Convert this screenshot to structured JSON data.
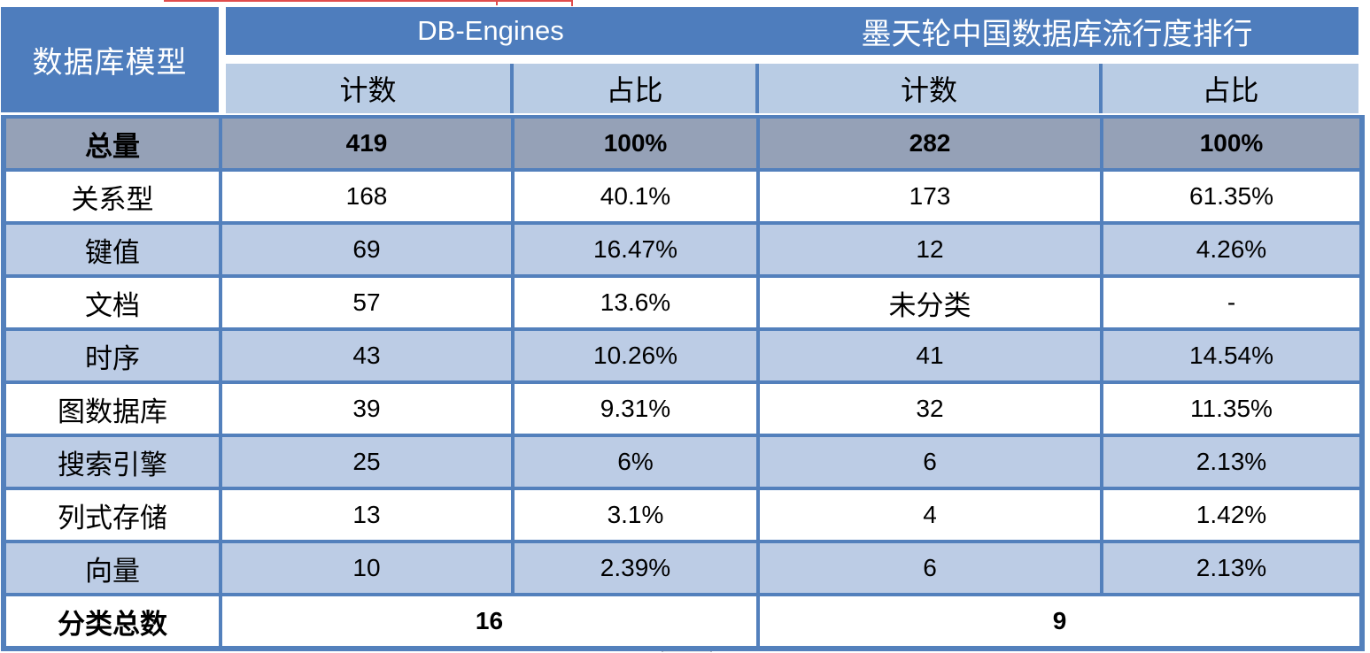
{
  "table": {
    "corner_header": "数据库模型",
    "groups": [
      {
        "label": "DB-Engines"
      },
      {
        "label": "墨天轮中国数据库流行度排行"
      }
    ],
    "subheaders": [
      "计数",
      "占比",
      "计数",
      "占比"
    ],
    "rows": [
      {
        "label": "总量",
        "cells": [
          "419",
          "100%",
          "282",
          "100%"
        ]
      },
      {
        "label": "关系型",
        "cells": [
          "168",
          "40.1%",
          "173",
          "61.35%"
        ]
      },
      {
        "label": "键值",
        "cells": [
          "69",
          "16.47%",
          "12",
          "4.26%"
        ]
      },
      {
        "label": "文档",
        "cells": [
          "57",
          "13.6%",
          "未分类",
          "-"
        ]
      },
      {
        "label": "时序",
        "cells": [
          "43",
          "10.26%",
          "41",
          "14.54%"
        ]
      },
      {
        "label": "图数据库",
        "cells": [
          "39",
          "9.31%",
          "32",
          "11.35%"
        ]
      },
      {
        "label": "搜索引擎",
        "cells": [
          "25",
          "6%",
          "6",
          "2.13%"
        ]
      },
      {
        "label": "列式存储",
        "cells": [
          "13",
          "3.1%",
          "4",
          "1.42%"
        ]
      },
      {
        "label": "向量",
        "cells": [
          "10",
          "2.39%",
          "6",
          "2.13%"
        ]
      }
    ],
    "footer": {
      "label": "分类总数",
      "values": [
        "16",
        "9"
      ]
    }
  },
  "colors": {
    "header_blue": "#4E7DBD",
    "light_blue": "#BCCCE5",
    "total_row_gray": "#95A1B7",
    "grid_blue": "#5380BC",
    "text": "#000000",
    "header_text": "#FFFFFF",
    "artifact_red": "#E04C4C"
  }
}
